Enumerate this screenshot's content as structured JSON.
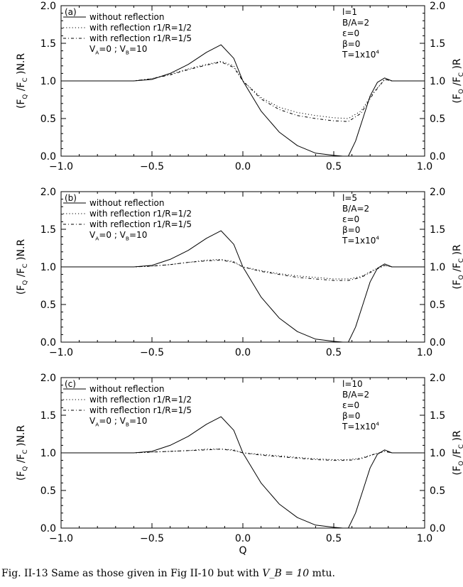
{
  "chart_data": [
    {
      "type": "line",
      "panel_label": "(a)",
      "xlim": [
        -1.0,
        1.0
      ],
      "ylim": [
        0.0,
        2.0
      ],
      "x_ticks": [
        "-1.0",
        "-0.5",
        "0.0",
        "0.5",
        "1.0"
      ],
      "y_ticks": [
        "0.0",
        "0.5",
        "1.0",
        "1.5",
        "2.0"
      ],
      "ylabel_left": "(F_Q /F_C )N.R",
      "ylabel_right": "(F_Q /F_C )R",
      "xlabel": "",
      "legend": [
        "without reflection",
        "with reflection r1/R=1/2",
        "with reflection r1/R=1/5"
      ],
      "legend_note": "V_A=0 ; V_B=10",
      "params": [
        "l=1",
        "B/A=2",
        "ε=0",
        "β=0",
        "T=1x10^4"
      ],
      "series": [
        {
          "name": "without reflection",
          "style": "solid",
          "x": [
            -1.0,
            -0.6,
            -0.5,
            -0.4,
            -0.3,
            -0.2,
            -0.12,
            -0.05,
            0.0,
            0.1,
            0.2,
            0.3,
            0.4,
            0.5,
            0.55,
            0.58,
            0.62,
            0.66,
            0.7,
            0.74,
            0.78,
            0.82,
            0.9,
            1.0
          ],
          "y": [
            1.0,
            1.0,
            1.02,
            1.1,
            1.22,
            1.38,
            1.48,
            1.3,
            1.0,
            0.6,
            0.32,
            0.14,
            0.04,
            0.01,
            0.0,
            0.0,
            0.2,
            0.5,
            0.8,
            0.98,
            1.04,
            1.0,
            1.0,
            1.0
          ]
        },
        {
          "name": "with reflection r1/R=1/2",
          "style": "dotted",
          "x": [
            -1.0,
            -0.6,
            -0.5,
            -0.4,
            -0.3,
            -0.2,
            -0.12,
            -0.05,
            0.0,
            0.1,
            0.2,
            0.3,
            0.4,
            0.5,
            0.58,
            0.65,
            0.72,
            0.78,
            0.82,
            0.9,
            1.0
          ],
          "y": [
            1.0,
            1.0,
            1.03,
            1.09,
            1.16,
            1.22,
            1.26,
            1.2,
            1.0,
            0.78,
            0.65,
            0.58,
            0.54,
            0.51,
            0.5,
            0.6,
            0.85,
            1.02,
            1.0,
            1.0,
            1.0
          ]
        },
        {
          "name": "with reflection r1/R=1/5",
          "style": "dashed",
          "x": [
            -1.0,
            -0.6,
            -0.5,
            -0.4,
            -0.3,
            -0.2,
            -0.12,
            -0.05,
            0.0,
            0.1,
            0.2,
            0.3,
            0.4,
            0.5,
            0.58,
            0.65,
            0.72,
            0.78,
            0.82,
            0.9,
            1.0
          ],
          "y": [
            1.0,
            1.0,
            1.03,
            1.08,
            1.15,
            1.21,
            1.25,
            1.18,
            1.0,
            0.76,
            0.62,
            0.54,
            0.5,
            0.47,
            0.46,
            0.57,
            0.84,
            1.02,
            1.0,
            1.0,
            1.0
          ]
        }
      ]
    },
    {
      "type": "line",
      "panel_label": "(b)",
      "xlim": [
        -1.0,
        1.0
      ],
      "ylim": [
        0.0,
        2.0
      ],
      "x_ticks": [
        "-1.0",
        "-0.5",
        "0.0",
        "0.5",
        "1.0"
      ],
      "y_ticks": [
        "0.0",
        "0.5",
        "1.0",
        "1.5",
        "2.0"
      ],
      "ylabel_left": "(F_Q /F_C )N.R",
      "ylabel_right": "(F_Q /F_C )R",
      "xlabel": "",
      "legend": [
        "without reflection",
        "with reflection r1/R=1/2",
        "with reflection r1/R=1/5"
      ],
      "legend_note": "V_A=0 ; V_B=10",
      "params": [
        "l=5",
        "B/A=2",
        "ε=0",
        "β=0",
        "T=1x10^4"
      ],
      "series": [
        {
          "name": "without reflection",
          "style": "solid",
          "x": [
            -1.0,
            -0.6,
            -0.5,
            -0.4,
            -0.3,
            -0.2,
            -0.12,
            -0.05,
            0.0,
            0.1,
            0.2,
            0.3,
            0.4,
            0.5,
            0.55,
            0.58,
            0.62,
            0.66,
            0.7,
            0.74,
            0.78,
            0.82,
            0.9,
            1.0
          ],
          "y": [
            1.0,
            1.0,
            1.02,
            1.1,
            1.22,
            1.38,
            1.48,
            1.3,
            1.0,
            0.6,
            0.32,
            0.14,
            0.04,
            0.01,
            0.0,
            0.0,
            0.2,
            0.5,
            0.8,
            0.98,
            1.04,
            1.0,
            1.0,
            1.0
          ]
        },
        {
          "name": "with reflection r1/R=1/2",
          "style": "dotted",
          "x": [
            -1.0,
            -0.6,
            -0.5,
            -0.4,
            -0.3,
            -0.2,
            -0.12,
            -0.05,
            0.0,
            0.1,
            0.2,
            0.3,
            0.4,
            0.5,
            0.58,
            0.65,
            0.72,
            0.78,
            0.82,
            0.9,
            1.0
          ],
          "y": [
            1.0,
            1.0,
            1.01,
            1.03,
            1.06,
            1.09,
            1.1,
            1.07,
            1.0,
            0.95,
            0.91,
            0.88,
            0.86,
            0.84,
            0.84,
            0.87,
            0.96,
            1.02,
            1.0,
            1.0,
            1.0
          ]
        },
        {
          "name": "with reflection r1/R=1/5",
          "style": "dashed",
          "x": [
            -1.0,
            -0.6,
            -0.5,
            -0.4,
            -0.3,
            -0.2,
            -0.12,
            -0.05,
            0.0,
            0.1,
            0.2,
            0.3,
            0.4,
            0.5,
            0.58,
            0.65,
            0.72,
            0.78,
            0.82,
            0.9,
            1.0
          ],
          "y": [
            1.0,
            1.0,
            1.01,
            1.03,
            1.06,
            1.08,
            1.09,
            1.06,
            1.0,
            0.94,
            0.9,
            0.86,
            0.84,
            0.82,
            0.82,
            0.86,
            0.95,
            1.02,
            1.0,
            1.0,
            1.0
          ]
        }
      ]
    },
    {
      "type": "line",
      "panel_label": "(c)",
      "xlim": [
        -1.0,
        1.0
      ],
      "ylim": [
        0.0,
        2.0
      ],
      "x_ticks": [
        "-1.0",
        "-0.5",
        "0.0",
        "0.5",
        "1.0"
      ],
      "y_ticks": [
        "0.0",
        "0.5",
        "1.0",
        "1.5",
        "2.0"
      ],
      "ylabel_left": "(F_Q /F_C )N.R",
      "ylabel_right": "(F_Q /F_C )R",
      "xlabel": "Q",
      "legend": [
        "without reflection",
        "with reflection r1/R=1/2",
        "with reflection r1/R=1/5"
      ],
      "legend_note": "V_A=0 ; V_B=10",
      "params": [
        "l=10",
        "B/A=2",
        "ε=0",
        "β=0",
        "T=1x10^4"
      ],
      "series": [
        {
          "name": "without reflection",
          "style": "solid",
          "x": [
            -1.0,
            -0.6,
            -0.5,
            -0.4,
            -0.3,
            -0.2,
            -0.12,
            -0.05,
            0.0,
            0.1,
            0.2,
            0.3,
            0.4,
            0.5,
            0.55,
            0.58,
            0.62,
            0.66,
            0.7,
            0.74,
            0.78,
            0.82,
            0.9,
            1.0
          ],
          "y": [
            1.0,
            1.0,
            1.02,
            1.1,
            1.22,
            1.38,
            1.48,
            1.3,
            1.0,
            0.6,
            0.32,
            0.14,
            0.04,
            0.01,
            0.0,
            0.0,
            0.2,
            0.5,
            0.8,
            0.98,
            1.04,
            1.0,
            1.0,
            1.0
          ]
        },
        {
          "name": "with reflection r1/R=1/2",
          "style": "dotted",
          "x": [
            -1.0,
            -0.6,
            -0.5,
            -0.4,
            -0.3,
            -0.2,
            -0.12,
            -0.05,
            0.0,
            0.1,
            0.2,
            0.3,
            0.4,
            0.5,
            0.58,
            0.65,
            0.72,
            0.78,
            0.82,
            0.9,
            1.0
          ],
          "y": [
            1.0,
            1.0,
            1.01,
            1.02,
            1.03,
            1.05,
            1.05,
            1.04,
            1.0,
            0.98,
            0.96,
            0.94,
            0.92,
            0.91,
            0.91,
            0.93,
            0.98,
            1.02,
            1.0,
            1.0,
            1.0
          ]
        },
        {
          "name": "with reflection r1/R=1/5",
          "style": "dashed",
          "x": [
            -1.0,
            -0.6,
            -0.5,
            -0.4,
            -0.3,
            -0.2,
            -0.12,
            -0.05,
            0.0,
            0.1,
            0.2,
            0.3,
            0.4,
            0.5,
            0.58,
            0.65,
            0.72,
            0.78,
            0.82,
            0.9,
            1.0
          ],
          "y": [
            1.0,
            1.0,
            1.01,
            1.02,
            1.03,
            1.04,
            1.05,
            1.03,
            1.0,
            0.97,
            0.95,
            0.93,
            0.91,
            0.9,
            0.9,
            0.92,
            0.98,
            1.02,
            1.0,
            1.0,
            1.0
          ]
        }
      ]
    }
  ],
  "caption": {
    "prefix": "Fig. II-13 Same as those given in Fig II-10 but with ",
    "math": "V_B = 10",
    "suffix": " mtu."
  }
}
